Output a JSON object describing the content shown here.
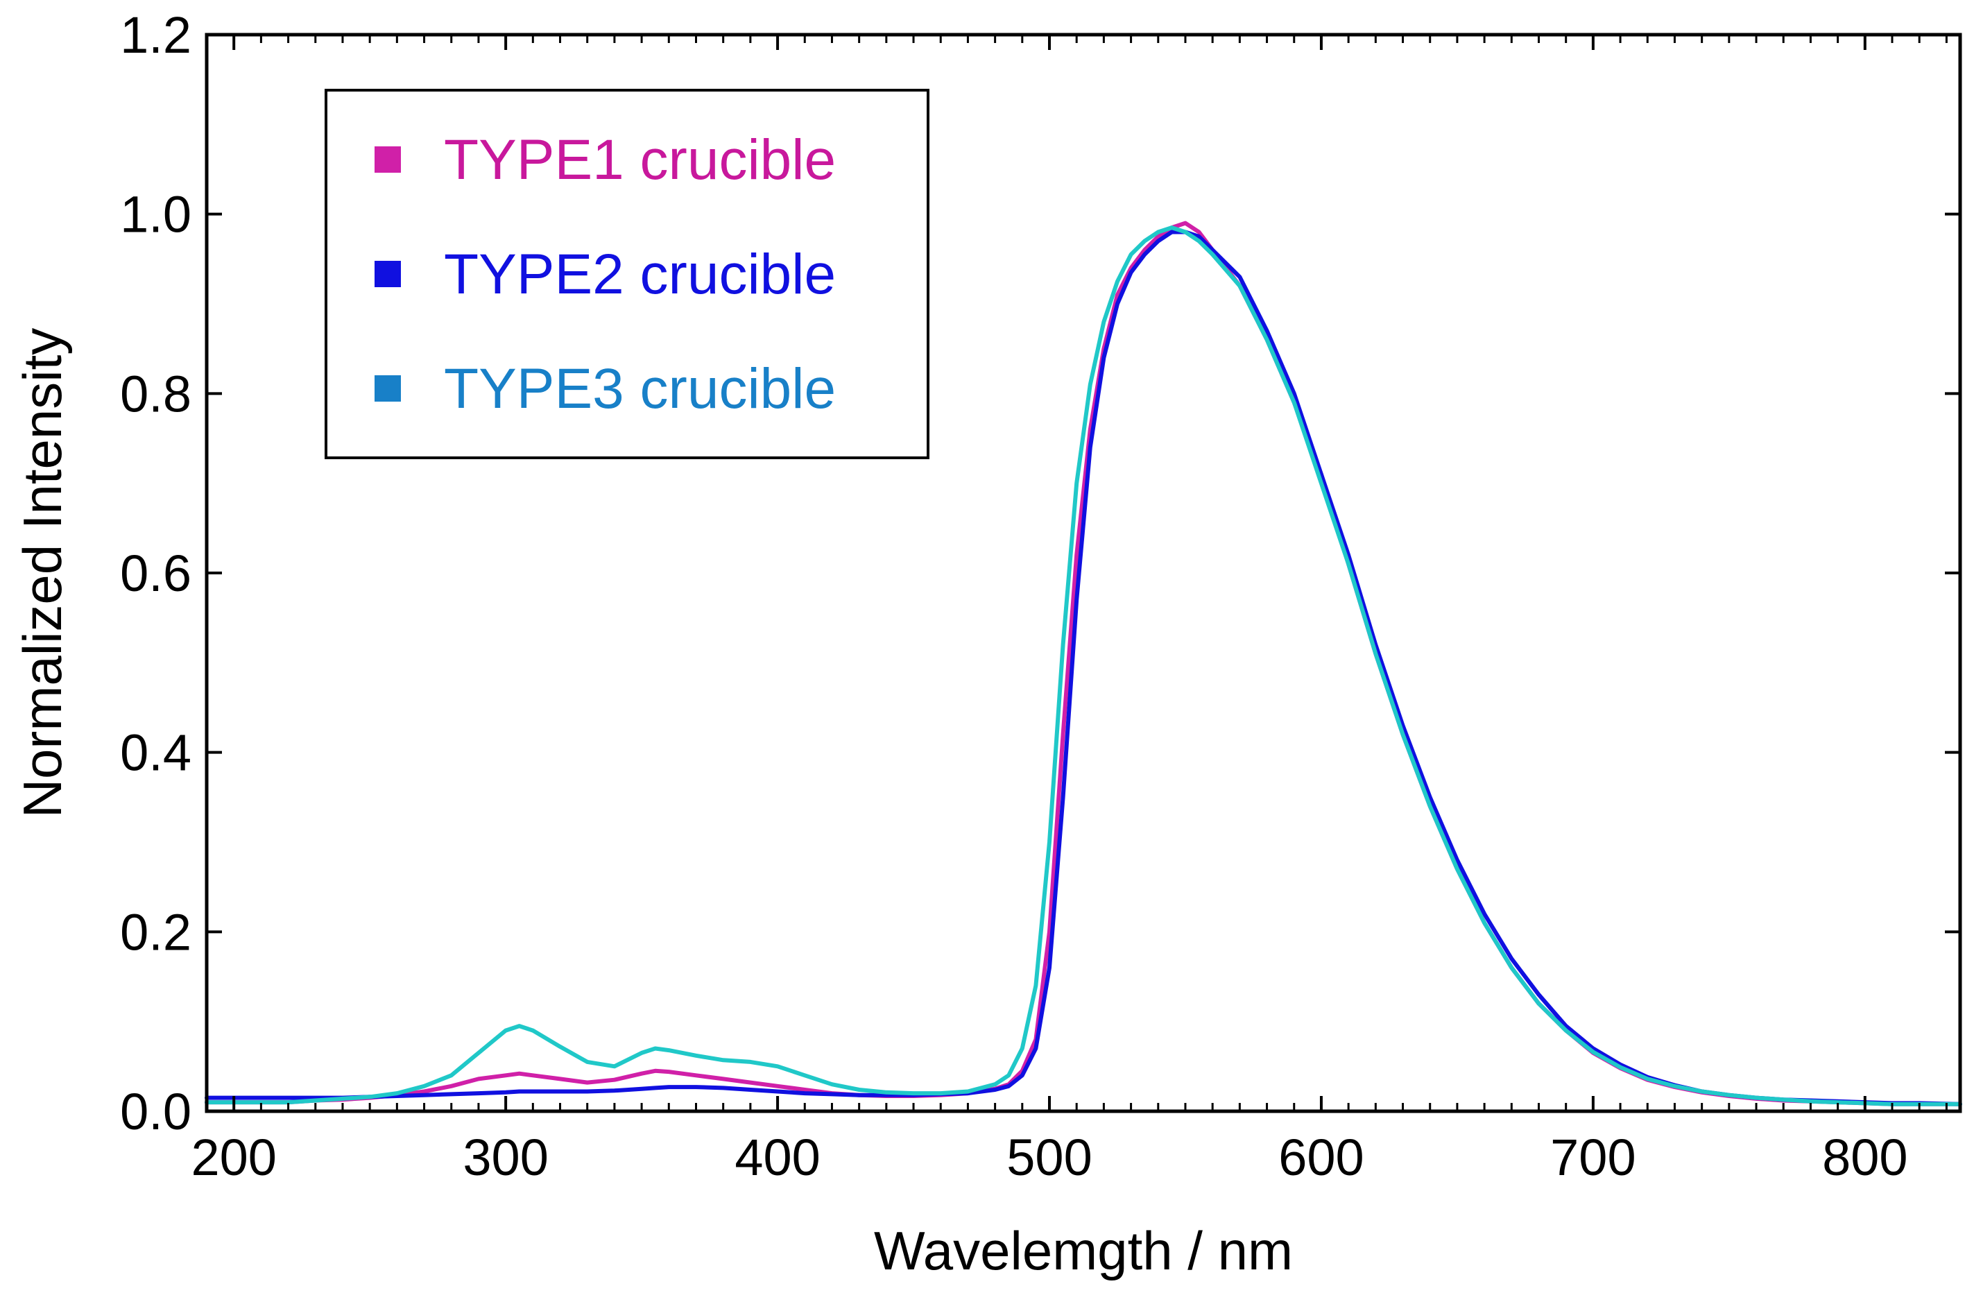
{
  "chart_data": {
    "type": "line",
    "title": "",
    "xlabel": "Wavelemgth / nm",
    "ylabel": "Normalized Intensity",
    "xlim": [
      190,
      835
    ],
    "ylim": [
      0,
      1.2
    ],
    "x_ticks": [
      200,
      300,
      400,
      500,
      600,
      700,
      800
    ],
    "x_tick_labels": [
      "200",
      "300",
      "400",
      "500",
      "600",
      "700",
      "800"
    ],
    "y_ticks": [
      0,
      0.2,
      0.4,
      0.6,
      0.8,
      1.0,
      1.2
    ],
    "y_tick_labels": [
      "0.0",
      "0.2",
      "0.4",
      "0.6",
      "0.8",
      "1.0",
      "1.2"
    ],
    "grid": false,
    "legend_position": "top-left",
    "x": [
      190,
      200,
      210,
      220,
      230,
      240,
      250,
      260,
      270,
      280,
      290,
      300,
      305,
      310,
      320,
      330,
      340,
      350,
      355,
      360,
      370,
      380,
      390,
      400,
      410,
      420,
      430,
      440,
      450,
      460,
      470,
      480,
      485,
      490,
      495,
      500,
      505,
      510,
      515,
      520,
      525,
      530,
      535,
      540,
      545,
      550,
      555,
      560,
      570,
      580,
      590,
      600,
      610,
      620,
      630,
      640,
      650,
      660,
      670,
      680,
      690,
      700,
      710,
      720,
      730,
      740,
      750,
      760,
      770,
      780,
      790,
      800,
      810,
      820,
      835
    ],
    "series": [
      {
        "name": "TYPE1 crucible",
        "color": "#d020a8",
        "values": [
          0.01,
          0.01,
          0.01,
          0.01,
          0.012,
          0.013,
          0.015,
          0.018,
          0.022,
          0.028,
          0.036,
          0.04,
          0.042,
          0.04,
          0.036,
          0.032,
          0.035,
          0.042,
          0.045,
          0.044,
          0.04,
          0.036,
          0.032,
          0.028,
          0.024,
          0.02,
          0.018,
          0.017,
          0.017,
          0.018,
          0.02,
          0.025,
          0.03,
          0.045,
          0.08,
          0.2,
          0.42,
          0.62,
          0.76,
          0.85,
          0.91,
          0.94,
          0.96,
          0.975,
          0.985,
          0.99,
          0.98,
          0.96,
          0.92,
          0.86,
          0.79,
          0.71,
          0.61,
          0.51,
          0.42,
          0.34,
          0.27,
          0.21,
          0.16,
          0.12,
          0.09,
          0.065,
          0.048,
          0.035,
          0.027,
          0.021,
          0.017,
          0.014,
          0.012,
          0.011,
          0.01,
          0.009,
          0.008,
          0.008,
          0.008
        ]
      },
      {
        "name": "TYPE2 crucible",
        "color": "#1010e0",
        "values": [
          0.015,
          0.015,
          0.015,
          0.015,
          0.015,
          0.015,
          0.016,
          0.017,
          0.018,
          0.019,
          0.02,
          0.021,
          0.022,
          0.022,
          0.022,
          0.022,
          0.023,
          0.025,
          0.026,
          0.027,
          0.027,
          0.026,
          0.024,
          0.022,
          0.02,
          0.019,
          0.018,
          0.018,
          0.018,
          0.019,
          0.02,
          0.024,
          0.028,
          0.04,
          0.07,
          0.16,
          0.35,
          0.57,
          0.74,
          0.84,
          0.9,
          0.935,
          0.955,
          0.97,
          0.98,
          0.98,
          0.975,
          0.96,
          0.93,
          0.87,
          0.8,
          0.71,
          0.62,
          0.52,
          0.43,
          0.35,
          0.28,
          0.22,
          0.17,
          0.13,
          0.095,
          0.07,
          0.052,
          0.038,
          0.029,
          0.022,
          0.018,
          0.015,
          0.013,
          0.012,
          0.011,
          0.01,
          0.009,
          0.009,
          0.008
        ]
      },
      {
        "name": "TYPE3 crucible",
        "color": "#20c8c8",
        "values": [
          0.01,
          0.01,
          0.01,
          0.01,
          0.012,
          0.014,
          0.016,
          0.02,
          0.028,
          0.04,
          0.065,
          0.09,
          0.095,
          0.09,
          0.072,
          0.055,
          0.05,
          0.065,
          0.07,
          0.068,
          0.062,
          0.057,
          0.055,
          0.05,
          0.04,
          0.03,
          0.024,
          0.021,
          0.02,
          0.02,
          0.022,
          0.03,
          0.04,
          0.07,
          0.14,
          0.3,
          0.52,
          0.7,
          0.81,
          0.88,
          0.925,
          0.955,
          0.97,
          0.98,
          0.985,
          0.98,
          0.97,
          0.955,
          0.92,
          0.86,
          0.79,
          0.7,
          0.61,
          0.51,
          0.42,
          0.34,
          0.27,
          0.21,
          0.16,
          0.12,
          0.09,
          0.066,
          0.049,
          0.036,
          0.028,
          0.022,
          0.018,
          0.015,
          0.013,
          0.011,
          0.01,
          0.009,
          0.008,
          0.008,
          0.008
        ]
      }
    ],
    "legend": [
      {
        "label": "TYPE1 crucible",
        "text_color": "#c8189c",
        "marker_color": "#d020a8"
      },
      {
        "label": "TYPE2 crucible",
        "text_color": "#1010e0",
        "marker_color": "#1010e0"
      },
      {
        "label": "TYPE3 crucible",
        "text_color": "#1880c8",
        "marker_color": "#1880c8"
      }
    ]
  }
}
